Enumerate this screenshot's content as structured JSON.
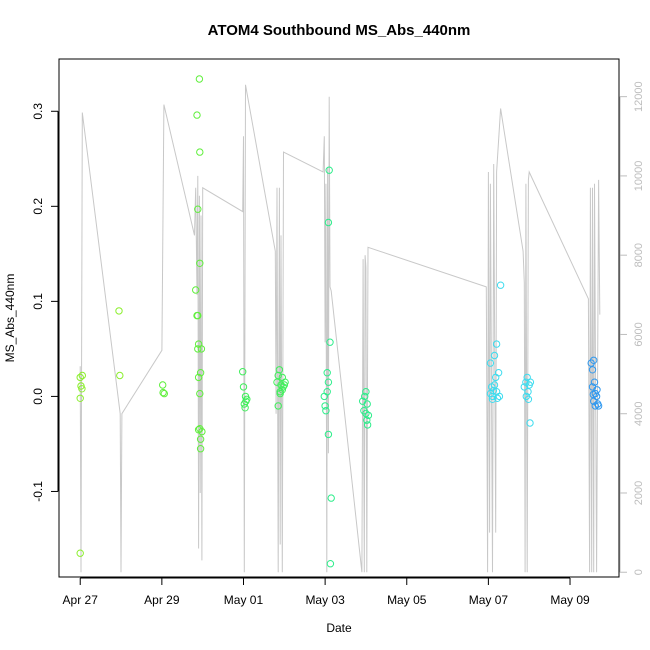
{
  "chart_data": {
    "type": "scatter",
    "title": "ATOM4 Southbound MS_Abs_440nm",
    "xlabel": "Date",
    "ylabel": "MS_Abs_440nm",
    "x_ticks": [
      "Apr 27",
      "Apr 29",
      "May 01",
      "May 03",
      "May 05",
      "May 07",
      "May 09"
    ],
    "x_tick_days": [
      0,
      2,
      4,
      6,
      8,
      10,
      12
    ],
    "y_ticks": [
      "-0.1",
      "0.0",
      "0.1",
      "0.2",
      "0.3"
    ],
    "y_tick_values": [
      -0.1,
      0.0,
      0.1,
      0.2,
      0.3
    ],
    "y2_ticks": [
      "0",
      "2000",
      "4000",
      "6000",
      "8000",
      "10000",
      "12000"
    ],
    "y2_tick_values": [
      0,
      2000,
      4000,
      6000,
      8000,
      10000,
      12000
    ],
    "xlim_days": [
      -0.52,
      13.2
    ],
    "ylim": [
      -0.19,
      0.355
    ],
    "y2lim": [
      -120,
      12950
    ],
    "points": [
      [
        0.0,
        0.02
      ],
      [
        0.02,
        0.011
      ],
      [
        0.05,
        0.022
      ],
      [
        0.04,
        0.008
      ],
      [
        0.0,
        -0.002
      ],
      [
        0.0,
        -0.165
      ],
      [
        0.95,
        0.09
      ],
      [
        0.97,
        0.022
      ],
      [
        2.02,
        0.012
      ],
      [
        2.03,
        0.004
      ],
      [
        2.06,
        0.003
      ],
      [
        2.83,
        0.112
      ],
      [
        2.86,
        0.085
      ],
      [
        2.86,
        0.296
      ],
      [
        2.88,
        0.197
      ],
      [
        2.88,
        0.05
      ],
      [
        2.9,
        0.02
      ],
      [
        2.9,
        0.055
      ],
      [
        2.92,
        0.334
      ],
      [
        2.93,
        0.257
      ],
      [
        2.93,
        0.14
      ],
      [
        2.9,
        -0.035
      ],
      [
        2.93,
        -0.034
      ],
      [
        2.95,
        -0.045
      ],
      [
        2.95,
        -0.055
      ],
      [
        2.97,
        0.05
      ],
      [
        2.95,
        0.025
      ],
      [
        2.93,
        0.003
      ],
      [
        2.98,
        -0.037
      ],
      [
        2.88,
        0.085
      ],
      [
        3.98,
        0.026
      ],
      [
        4.0,
        0.01
      ],
      [
        4.05,
        0.0
      ],
      [
        4.06,
        -0.005
      ],
      [
        4.02,
        -0.008
      ],
      [
        4.04,
        -0.012
      ],
      [
        4.08,
        -0.003
      ],
      [
        4.82,
        0.015
      ],
      [
        4.85,
        0.022
      ],
      [
        4.88,
        0.028
      ],
      [
        4.9,
        0.005
      ],
      [
        4.92,
        0.012
      ],
      [
        4.95,
        0.02
      ],
      [
        4.97,
        0.01
      ],
      [
        4.85,
        -0.01
      ],
      [
        4.9,
        0.003
      ],
      [
        5.0,
        0.012
      ],
      [
        4.95,
        0.007
      ],
      [
        5.02,
        0.015
      ],
      [
        5.98,
        0.0
      ],
      [
        6.0,
        -0.01
      ],
      [
        6.02,
        -0.015
      ],
      [
        6.05,
        0.005
      ],
      [
        6.08,
        0.015
      ],
      [
        6.05,
        0.025
      ],
      [
        6.1,
        0.238
      ],
      [
        6.08,
        0.183
      ],
      [
        6.12,
        0.057
      ],
      [
        6.08,
        -0.04
      ],
      [
        6.15,
        -0.107
      ],
      [
        6.13,
        -0.176
      ],
      [
        6.92,
        -0.005
      ],
      [
        6.95,
        -0.015
      ],
      [
        6.97,
        0.0
      ],
      [
        7.0,
        -0.018
      ],
      [
        7.02,
        -0.025
      ],
      [
        7.04,
        -0.03
      ],
      [
        7.06,
        -0.02
      ],
      [
        7.0,
        0.005
      ],
      [
        7.03,
        -0.008
      ],
      [
        10.05,
        0.003
      ],
      [
        10.08,
        0.01
      ],
      [
        10.1,
        0.0
      ],
      [
        10.12,
        0.006
      ],
      [
        10.15,
        0.012
      ],
      [
        10.18,
        0.02
      ],
      [
        10.2,
        0.005
      ],
      [
        10.22,
        -0.002
      ],
      [
        10.25,
        0.025
      ],
      [
        10.3,
        0.117
      ],
      [
        10.15,
        0.043
      ],
      [
        10.2,
        0.055
      ],
      [
        10.05,
        0.035
      ],
      [
        10.27,
        0.0
      ],
      [
        10.1,
        -0.003
      ],
      [
        10.88,
        0.01
      ],
      [
        10.92,
        0.015
      ],
      [
        10.95,
        0.02
      ],
      [
        10.97,
        0.005
      ],
      [
        11.0,
        0.012
      ],
      [
        10.98,
        -0.003
      ],
      [
        11.02,
        -0.028
      ],
      [
        11.03,
        0.015
      ],
      [
        10.93,
        0.0
      ],
      [
        12.52,
        0.035
      ],
      [
        12.55,
        0.028
      ],
      [
        12.58,
        0.038
      ],
      [
        12.55,
        0.01
      ],
      [
        12.6,
        0.015
      ],
      [
        12.62,
        0.003
      ],
      [
        12.65,
        0.0
      ],
      [
        12.58,
        -0.005
      ],
      [
        12.62,
        -0.01
      ],
      [
        12.68,
        -0.008
      ],
      [
        12.57,
        0.002
      ],
      [
        12.7,
        -0.01
      ],
      [
        12.66,
        0.007
      ]
    ],
    "track_line": [
      [
        0.0,
        5200
      ],
      [
        0.02,
        0
      ],
      [
        0.05,
        11600
      ],
      [
        0.98,
        4000
      ],
      [
        1.0,
        0
      ],
      [
        1.02,
        4000
      ],
      [
        2.0,
        5600
      ],
      [
        2.05,
        11800
      ],
      [
        2.8,
        8500
      ],
      [
        2.83,
        9700
      ],
      [
        2.86,
        7000
      ],
      [
        2.88,
        10000
      ],
      [
        2.9,
        600
      ],
      [
        2.92,
        9500
      ],
      [
        2.94,
        2000
      ],
      [
        2.96,
        9000
      ],
      [
        2.98,
        300
      ],
      [
        3.0,
        9700
      ],
      [
        3.98,
        9100
      ],
      [
        4.0,
        11000
      ],
      [
        4.02,
        0
      ],
      [
        4.05,
        12300
      ],
      [
        4.78,
        8100
      ],
      [
        4.8,
        4000
      ],
      [
        4.82,
        9700
      ],
      [
        4.85,
        0
      ],
      [
        4.88,
        9700
      ],
      [
        4.9,
        700
      ],
      [
        4.92,
        8500
      ],
      [
        4.95,
        0
      ],
      [
        4.98,
        10600
      ],
      [
        5.95,
        10100
      ],
      [
        5.98,
        11000
      ],
      [
        6.0,
        5800
      ],
      [
        6.02,
        9800
      ],
      [
        6.04,
        0
      ],
      [
        6.06,
        10200
      ],
      [
        6.08,
        3000
      ],
      [
        6.1,
        12000
      ],
      [
        6.12,
        7200
      ],
      [
        6.15,
        7100
      ],
      [
        6.9,
        0
      ],
      [
        6.93,
        7900
      ],
      [
        6.96,
        0
      ],
      [
        6.98,
        8000
      ],
      [
        7.0,
        7700
      ],
      [
        7.02,
        0
      ],
      [
        7.05,
        8200
      ],
      [
        9.95,
        7200
      ],
      [
        9.98,
        0
      ],
      [
        10.0,
        10100
      ],
      [
        10.03,
        1000
      ],
      [
        10.05,
        9800
      ],
      [
        10.1,
        0
      ],
      [
        10.13,
        10300
      ],
      [
        10.18,
        1000
      ],
      [
        10.2,
        10100
      ],
      [
        10.3,
        11700
      ],
      [
        10.85,
        8100
      ],
      [
        10.88,
        7300
      ],
      [
        10.9,
        0
      ],
      [
        10.92,
        9800
      ],
      [
        10.95,
        0
      ],
      [
        10.98,
        9900
      ],
      [
        11.0,
        10100
      ],
      [
        12.45,
        6900
      ],
      [
        12.48,
        0
      ],
      [
        12.5,
        9700
      ],
      [
        12.53,
        0
      ],
      [
        12.55,
        9700
      ],
      [
        12.58,
        0
      ],
      [
        12.6,
        9800
      ],
      [
        12.65,
        0
      ],
      [
        12.7,
        9900
      ],
      [
        12.73,
        6500
      ]
    ],
    "point_colors": [
      "#8bef2d",
      "#60ef3d",
      "#3fef5a",
      "#2ced8a",
      "#34e8ba",
      "#3ddcef",
      "#2f98ef"
    ],
    "line_color": "#c8c8c8",
    "grid": false,
    "legend": "none"
  }
}
